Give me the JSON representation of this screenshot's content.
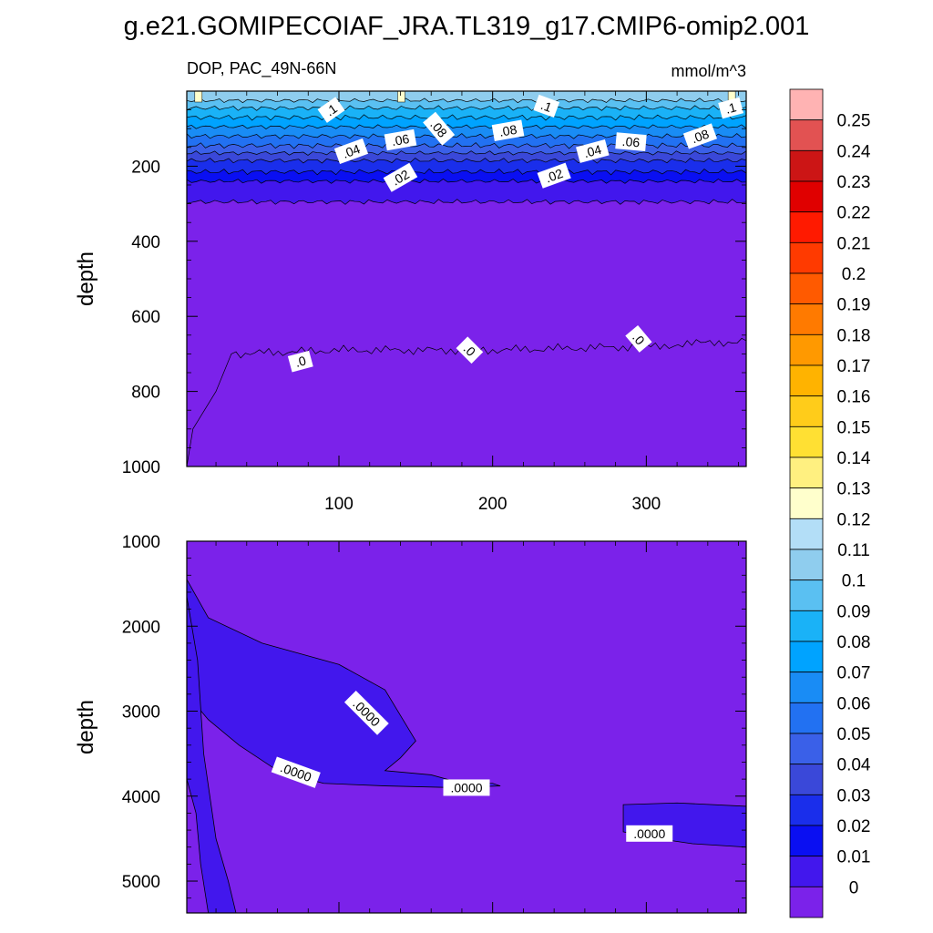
{
  "chart_data": [
    {
      "type": "heatmap",
      "title": "g.e21.GOMIPECOIAF_JRA.TL319_g17.CMIP6-omip2.001",
      "left_string": "DOP, PAC_49N-66N",
      "right_string": "mmol/m^3",
      "panel": "upper",
      "xlabel": "",
      "ylabel": "depth",
      "xlim": [
        1,
        365
      ],
      "ylim": [
        0,
        1000
      ],
      "x_ticks": [
        100,
        200,
        300
      ],
      "x_tick_labels": [
        "100",
        "200",
        "300"
      ],
      "y_ticks": [
        200,
        400,
        600,
        800,
        1000
      ],
      "y_tick_labels": [
        "200",
        "400",
        "600",
        "800",
        "1000"
      ],
      "approx_level_depths": [
        {
          "level": 0.11,
          "depth": 25
        },
        {
          "level": 0.1,
          "depth": 45
        },
        {
          "level": 0.09,
          "depth": 70
        },
        {
          "level": 0.08,
          "depth": 95
        },
        {
          "level": 0.07,
          "depth": 120
        },
        {
          "level": 0.06,
          "depth": 145
        },
        {
          "level": 0.05,
          "depth": 165
        },
        {
          "level": 0.04,
          "depth": 185
        },
        {
          "level": 0.03,
          "depth": 215
        },
        {
          "level": 0.02,
          "depth": 240
        },
        {
          "level": 0.01,
          "depth": 295
        }
      ],
      "zero_contour": [
        [
          1,
          1000
        ],
        [
          5,
          900
        ],
        [
          20,
          800
        ],
        [
          30,
          700
        ],
        [
          100,
          690
        ],
        [
          200,
          690
        ],
        [
          300,
          680
        ],
        [
          365,
          665
        ]
      ],
      "contour_labels": [
        {
          "text": ".1",
          "x": 95,
          "depth": 50
        },
        {
          "text": ".1",
          "x": 235,
          "depth": 40
        },
        {
          "text": ".1",
          "x": 355,
          "depth": 45
        },
        {
          "text": ".08",
          "x": 165,
          "depth": 100
        },
        {
          "text": ".08",
          "x": 210,
          "depth": 105
        },
        {
          "text": ".08",
          "x": 335,
          "depth": 120
        },
        {
          "text": ".06",
          "x": 140,
          "depth": 130
        },
        {
          "text": ".06",
          "x": 290,
          "depth": 135
        },
        {
          "text": ".04",
          "x": 108,
          "depth": 160
        },
        {
          "text": ".04",
          "x": 265,
          "depth": 160
        },
        {
          "text": ".02",
          "x": 140,
          "depth": 230
        },
        {
          "text": ".02",
          "x": 240,
          "depth": 225
        },
        {
          "text": ".0",
          "x": 75,
          "depth": 720
        },
        {
          "text": ".0",
          "x": 185,
          "depth": 690
        },
        {
          "text": ".0",
          "x": 295,
          "depth": 660
        }
      ]
    },
    {
      "type": "heatmap",
      "panel": "lower",
      "xlabel": "",
      "ylabel": "depth",
      "xlim": [
        1,
        365
      ],
      "ylim": [
        1000,
        5375
      ],
      "y_ticks": [
        1000,
        2000,
        3000,
        4000,
        5000
      ],
      "y_tick_labels": [
        "1000",
        "2000",
        "3000",
        "4000",
        "5000"
      ],
      "background_level": 0,
      "regions": [
        {
          "level": 0.01,
          "points": [
            [
              1,
              1450
            ],
            [
              15,
              1900
            ],
            [
              50,
              2200
            ],
            [
              100,
              2450
            ],
            [
              130,
              2750
            ],
            [
              145,
              3200
            ],
            [
              150,
              3350
            ],
            [
              140,
              3550
            ],
            [
              130,
              3700
            ],
            [
              160,
              3750
            ],
            [
              180,
              3850
            ],
            [
              200,
              3850
            ],
            [
              205,
              3880
            ],
            [
              175,
              3900
            ],
            [
              130,
              3880
            ],
            [
              90,
              3850
            ],
            [
              60,
              3700
            ],
            [
              35,
              3400
            ],
            [
              15,
              3100
            ],
            [
              1,
              2800
            ]
          ]
        },
        {
          "level": 0.01,
          "points": [
            [
              1,
              1650
            ],
            [
              8,
              2400
            ],
            [
              12,
              3500
            ],
            [
              20,
              4500
            ],
            [
              28,
              5000
            ],
            [
              33,
              5375
            ],
            [
              15,
              5375
            ],
            [
              10,
              4800
            ],
            [
              7,
              4200
            ],
            [
              1,
              3800
            ]
          ]
        },
        {
          "level": 0.01,
          "points": [
            [
              285,
              4100
            ],
            [
              320,
              4080
            ],
            [
              365,
              4120
            ],
            [
              365,
              4600
            ],
            [
              330,
              4560
            ],
            [
              300,
              4480
            ],
            [
              285,
              4420
            ]
          ]
        }
      ],
      "contour_labels": [
        {
          "text": ".0000",
          "x": 118,
          "depth": 3020
        },
        {
          "text": ".0000",
          "x": 72,
          "depth": 3720
        },
        {
          "text": ".0000",
          "x": 183,
          "depth": 3900
        },
        {
          "text": ".0000",
          "x": 302,
          "depth": 4440
        }
      ]
    },
    {
      "type": "colorbar",
      "levels": [
        0.25,
        0.24,
        0.23,
        0.22,
        0.21,
        0.2,
        0.19,
        0.18,
        0.17,
        0.16,
        0.15,
        0.14,
        0.13,
        0.12,
        0.11,
        0.1,
        0.09,
        0.08,
        0.07,
        0.06,
        0.05,
        0.04,
        0.03,
        0.02,
        0.01,
        0
      ],
      "labels": [
        "0.25",
        "0.24",
        "0.23",
        "0.22",
        "0.21",
        "0.2",
        "0.19",
        "0.18",
        "0.17",
        "0.16",
        "0.15",
        "0.14",
        "0.13",
        "0.12",
        "0.11",
        "0.1",
        "0.09",
        "0.08",
        "0.07",
        "0.06",
        "0.05",
        "0.04",
        "0.03",
        "0.02",
        "0.01",
        "0"
      ],
      "colors_top_to_bottom": [
        "#ffb3b3",
        "#e25252",
        "#cc1515",
        "#e00000",
        "#ff1a00",
        "#ff3a00",
        "#ff5a00",
        "#ff7a00",
        "#ff9900",
        "#ffb300",
        "#ffcc1a",
        "#ffe033",
        "#fff080",
        "#ffffcc",
        "#b3def7",
        "#8fcdee",
        "#5ac0f2",
        "#1ab2f7",
        "#00a3ff",
        "#198cf5",
        "#2271f2",
        "#3a60e8",
        "#3a48d9",
        "#1a2eeb",
        "#0a0ff2",
        "#4217ed",
        "#7b22ea"
      ]
    }
  ]
}
